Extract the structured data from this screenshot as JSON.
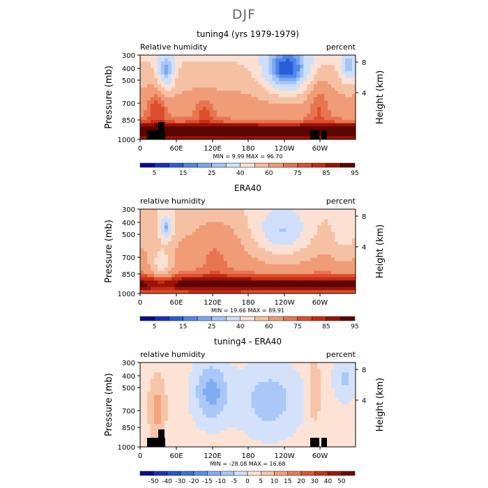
{
  "page_title": "DJF",
  "chart_data": [
    {
      "type": "heatmap",
      "title": "tuning4 (yrs 1979-1979)",
      "field_label": "Relative humidity",
      "units_label": "percent",
      "ylabel": "Pressure (mb)",
      "y2label": "Height (km)",
      "ylim": [
        1000,
        300
      ],
      "yticks": [
        "300",
        "400",
        "500",
        "700",
        "850",
        "1000"
      ],
      "y2ticks": [
        "8",
        "4"
      ],
      "xticks": [
        "0",
        "60E",
        "120E",
        "180",
        "120W",
        "60W"
      ],
      "stats": "MIN =    9.99   MAX =   96.70",
      "colorbar_labels": [
        "5",
        "15",
        "25",
        "40",
        "60",
        "75",
        "85",
        "95"
      ],
      "colorbar_colors": [
        "#0c0a8f",
        "#1633c2",
        "#2a5ed9",
        "#4f86ea",
        "#7aa7f0",
        "#a6c6f6",
        "#cfdff9",
        "#fbe1d3",
        "#f6c0a3",
        "#f09c76",
        "#e77550",
        "#dd4f2c",
        "#c82c12",
        "#9a1208",
        "#5c0505"
      ],
      "scale": "abs",
      "grid": false,
      "legend": "bottom"
    },
    {
      "type": "heatmap",
      "title": "ERA40",
      "field_label": "relative humidity",
      "units_label": "percent",
      "ylabel": "Pressure (mb)",
      "y2label": "Height (km)",
      "ylim": [
        1000,
        300
      ],
      "yticks": [
        "300",
        "400",
        "500",
        "700",
        "850",
        "1000"
      ],
      "y2ticks": [
        "8",
        "4"
      ],
      "xticks": [
        "0",
        "60E",
        "120E",
        "180",
        "120W",
        "60W"
      ],
      "stats": "MIN =   19.66   MAX =   89.91",
      "colorbar_labels": [
        "5",
        "15",
        "25",
        "40",
        "60",
        "75",
        "85",
        "95"
      ],
      "colorbar_colors": [
        "#0c0a8f",
        "#1633c2",
        "#2a5ed9",
        "#4f86ea",
        "#7aa7f0",
        "#a6c6f6",
        "#cfdff9",
        "#fbe1d3",
        "#f6c0a3",
        "#f09c76",
        "#e77550",
        "#dd4f2c",
        "#c82c12",
        "#9a1208",
        "#5c0505"
      ],
      "scale": "abs",
      "grid": false,
      "legend": "bottom"
    },
    {
      "type": "heatmap",
      "title": "tuning4 - ERA40",
      "field_label": "relative humidity",
      "units_label": "percent",
      "ylabel": "Pressure (mb)",
      "y2label": "Height (km)",
      "ylim": [
        1000,
        300
      ],
      "yticks": [
        "300",
        "400",
        "500",
        "700",
        "850",
        "1000"
      ],
      "y2ticks": [
        "8",
        "4"
      ],
      "xticks": [
        "0",
        "60E",
        "120E",
        "180",
        "120W",
        "60W"
      ],
      "stats": "MIN =  -28.08   MAX =   16.68",
      "colorbar_labels": [
        "-50",
        "-40",
        "-30",
        "-20",
        "-15",
        "-10",
        "-5",
        "0",
        "5",
        "10",
        "15",
        "20",
        "30",
        "40",
        "50"
      ],
      "colorbar_colors": [
        "#0c0a8f",
        "#1433bf",
        "#2457d6",
        "#3b72e4",
        "#5b8eec",
        "#80acf3",
        "#a9c8f7",
        "#d3e2fa",
        "#fde3d5",
        "#f8c4a7",
        "#f3a27c",
        "#eb7b55",
        "#de5533",
        "#c8331a",
        "#a2180b",
        "#6e0808"
      ],
      "scale": "diff",
      "grid": false,
      "legend": "bottom"
    }
  ]
}
